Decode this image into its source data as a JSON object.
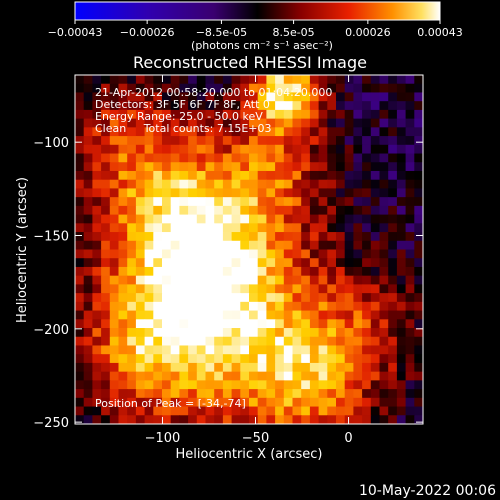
{
  "colorbar": {
    "tick_labels": [
      "-0.00043",
      "-0.00026",
      "-8.5e-05",
      "8.5e-05",
      "0.00026",
      "0.00043"
    ],
    "unit_label": "(photons cm⁻² s⁻¹ asec⁻²)",
    "range": [
      -0.00043,
      0.00043
    ]
  },
  "chart_data": {
    "type": "heatmap",
    "title": "Reconstructed RHESSI Image",
    "xlabel": "Heliocentric X (arcsec)",
    "ylabel": "Heliocentric Y (arcsec)",
    "xlim": [
      -147,
      40
    ],
    "ylim": [
      -251,
      -64
    ],
    "xticks": [
      -100,
      -50,
      0
    ],
    "xtick_labels": [
      "−100",
      "−50",
      "0"
    ],
    "yticks": [
      -100,
      -150,
      -200,
      -250
    ],
    "ytick_labels": [
      "−100",
      "−150",
      "−200",
      "−250"
    ],
    "annotations": [
      "21-Apr-2012 00:58:20.000 to 01:04:20.000",
      "Detectors: 3F 5F 6F 7F 8F, Att 0",
      "Energy Range: 25.0 - 50.0 keV",
      "Clean     Total counts: 7.15E+03"
    ],
    "peak_label": "Position of Peak = [-34,-74]",
    "peak": [
      -34,
      -74
    ],
    "colormap": [
      "#0000ff",
      "#3000b0",
      "#3c0078",
      "#000000",
      "#800000",
      "#e02000",
      "#ff8000",
      "#ffd000",
      "#ffffff"
    ]
  },
  "footer": {
    "timestamp": "10-May-2022 00:06"
  }
}
